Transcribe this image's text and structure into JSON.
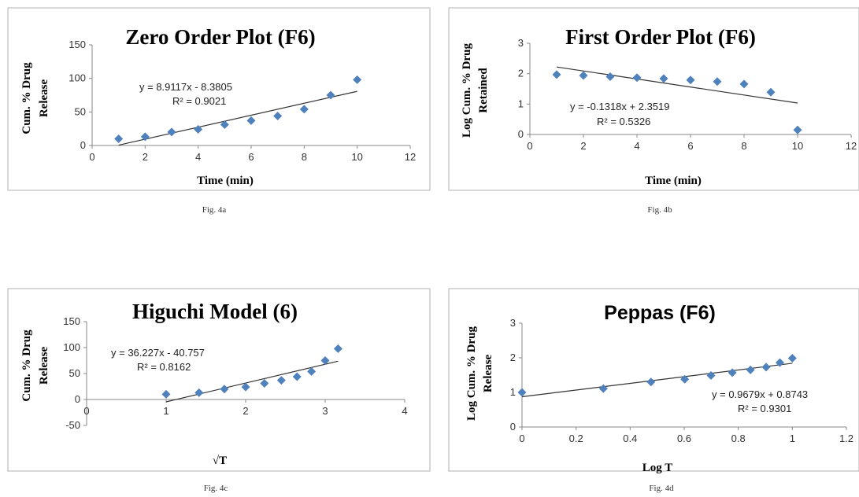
{
  "colors": {
    "marker": "#4f81bd",
    "trendline": "#333333",
    "axis": "#888888",
    "frame": "#b0b0b0"
  },
  "captions": [
    "Fig. 4a",
    "Fig. 4b",
    "Fig. 4c",
    "Fig. 4d"
  ],
  "chart_data": [
    {
      "type": "scatter",
      "title": "Zero Order Plot (F6)",
      "xlabel": "Time (min)",
      "ylabel": [
        "Cum. % Drug",
        "Release"
      ],
      "xlim": [
        0,
        12
      ],
      "ylim": [
        0,
        150
      ],
      "xticks": [
        0,
        2,
        4,
        6,
        8,
        10,
        12
      ],
      "yticks": [
        0,
        50,
        100,
        150
      ],
      "x": [
        1,
        2,
        3,
        4,
        5,
        6,
        7,
        8,
        9,
        10
      ],
      "y": [
        10,
        13,
        20,
        24,
        31,
        37,
        44,
        54,
        75,
        98
      ],
      "trendline": {
        "slope": 8.9117,
        "intercept": -8.3805,
        "x_range": [
          1,
          10
        ]
      },
      "equation": "y = 8.9117x - 8.3805",
      "r2": "R² = 0.9021",
      "grid": false
    },
    {
      "type": "scatter",
      "title": "First Order Plot (F6)",
      "xlabel": "Time (min)",
      "ylabel": [
        "Log Cum. % Drug",
        "Retained"
      ],
      "xlim": [
        0,
        12
      ],
      "ylim": [
        0,
        3
      ],
      "xticks": [
        0,
        2,
        4,
        6,
        8,
        10,
        12
      ],
      "yticks": [
        0,
        1,
        2,
        3
      ],
      "x": [
        1,
        2,
        3,
        4,
        5,
        6,
        7,
        8,
        9,
        10
      ],
      "y": [
        1.97,
        1.94,
        1.9,
        1.87,
        1.84,
        1.79,
        1.74,
        1.66,
        1.39,
        0.15
      ],
      "trendline": {
        "slope": -0.1318,
        "intercept": 2.3519,
        "x_range": [
          1,
          10
        ]
      },
      "equation": "y = -0.1318x + 2.3519",
      "r2": "R² = 0.5326",
      "grid": false
    },
    {
      "type": "scatter",
      "title": "Higuchi Model (6)",
      "xlabel": "√T",
      "ylabel": [
        "Cum. % Drug",
        "Release"
      ],
      "xlim": [
        0,
        4
      ],
      "ylim": [
        -50,
        150
      ],
      "xticks": [
        0,
        1,
        2,
        3,
        4
      ],
      "yticks": [
        -50,
        0,
        50,
        100,
        150
      ],
      "x": [
        1,
        1.414,
        1.732,
        2,
        2.236,
        2.449,
        2.646,
        2.828,
        3,
        3.162
      ],
      "y": [
        10,
        13,
        20,
        24,
        31,
        37,
        44,
        54,
        75,
        98
      ],
      "trendline": {
        "slope": 36.227,
        "intercept": -40.757,
        "x_range": [
          1,
          3.162
        ]
      },
      "equation": "y = 36.227x - 40.757",
      "r2": "R² = 0.8162",
      "grid": false
    },
    {
      "type": "scatter",
      "title": "Peppas (F6)",
      "xlabel": "Log T",
      "ylabel": [
        "Log Cum. % Drug",
        "Release"
      ],
      "xlim": [
        0,
        1.2
      ],
      "ylim": [
        0,
        3
      ],
      "xticks": [
        "0",
        "0.2",
        "0.4",
        "0.6",
        "0.8",
        "1",
        "1.2"
      ],
      "yticks": [
        0,
        1,
        2,
        3
      ],
      "x": [
        0,
        0.301,
        0.477,
        0.602,
        0.699,
        0.778,
        0.845,
        0.903,
        0.954,
        1
      ],
      "y": [
        1.0,
        1.11,
        1.3,
        1.38,
        1.49,
        1.57,
        1.65,
        1.73,
        1.86,
        1.99
      ],
      "trendline": {
        "slope": 0.9679,
        "intercept": 0.8743,
        "x_range": [
          0,
          1
        ]
      },
      "equation": "y = 0.9679x + 0.8743",
      "r2": "R² = 0.9301",
      "grid": false
    }
  ]
}
